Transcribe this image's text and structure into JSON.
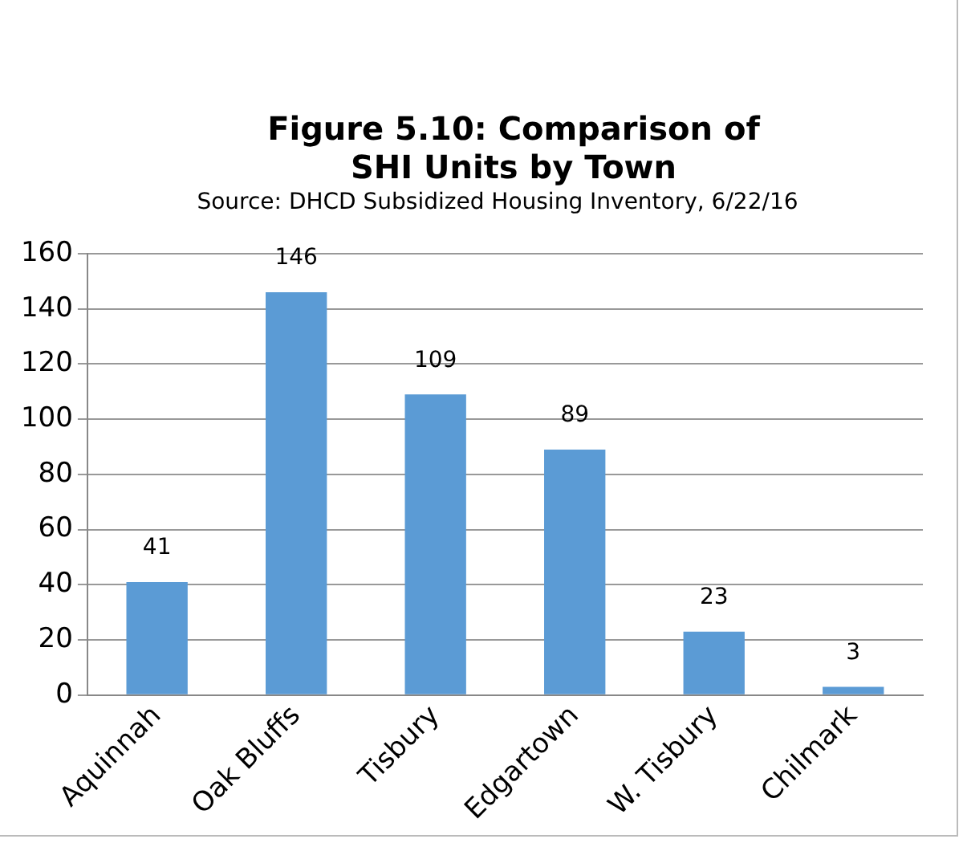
{
  "chart_data": {
    "type": "bar",
    "title": "Figure 5.10: Comparison of SHI Units by Town",
    "subtitle": "Source: DHCD Subsidized Housing Inventory, 6/22/16",
    "categories": [
      "Aquinnah",
      "Oak Bluffs",
      "Tisbury",
      "Edgartown",
      "W. Tisbury",
      "Chilmark"
    ],
    "values": [
      41,
      146,
      109,
      89,
      23,
      3
    ],
    "color": "#5b9bd5",
    "ylim": [
      0,
      160
    ],
    "yticks": [
      0,
      20,
      40,
      60,
      80,
      100,
      120,
      140,
      160
    ],
    "grid": "y",
    "data_labels": true
  }
}
